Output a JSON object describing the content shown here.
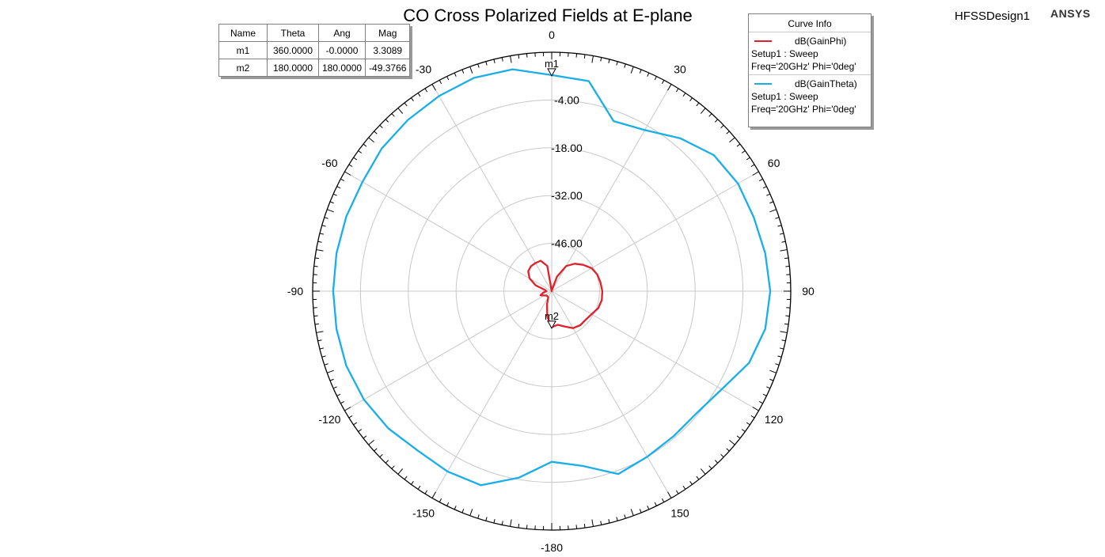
{
  "header": {
    "title": "CO Cross Polarized Fields at E-plane",
    "design": "HFSSDesign1",
    "brand": "ANSYS"
  },
  "marker_table": {
    "columns": [
      "Name",
      "Theta",
      "Ang",
      "Mag"
    ],
    "rows": [
      [
        "m1",
        "360.0000",
        "-0.0000",
        "3.3089"
      ],
      [
        "m2",
        "180.0000",
        "180.0000",
        "-49.3766"
      ]
    ]
  },
  "legend": {
    "title": "Curve Info",
    "entries": [
      {
        "name": "dB(GainPhi)",
        "setup": "Setup1 : Sweep",
        "freq": "Freq='20GHz' Phi='0deg'",
        "color": "#e0202a"
      },
      {
        "name": "dB(GainTheta)",
        "setup": "Setup1 : Sweep",
        "freq": "Freq='20GHz' Phi='0deg'",
        "color": "#1aaee8"
      }
    ]
  },
  "chart_data": {
    "type": "polar",
    "radial_range": [
      -60,
      10
    ],
    "radial_ticks": [
      -46.0,
      -32.0,
      -18.0,
      -4.0
    ],
    "radial_tick_labels": [
      "-46.00",
      "-32.00",
      "-18.00",
      "-4.00"
    ],
    "angle_ticks": [
      0,
      30,
      60,
      90,
      120,
      150,
      -180,
      -150,
      -120,
      -90,
      -60,
      -30
    ],
    "angle_tick_labels": [
      "0",
      "30",
      "60",
      "90",
      "120",
      "150",
      "-180",
      "-150",
      "-120",
      "-90",
      "-60",
      "-30"
    ],
    "grid": true,
    "series": [
      {
        "name": "dB(GainPhi)",
        "color": "#e0202a",
        "points": [
          [
            0,
            -60
          ],
          [
            10,
            -59.5
          ],
          [
            20,
            -55.5
          ],
          [
            30,
            -51.5
          ],
          [
            40,
            -49.5
          ],
          [
            50,
            -48
          ],
          [
            60,
            -46.5
          ],
          [
            70,
            -45.8
          ],
          [
            80,
            -45.5
          ],
          [
            90,
            -45.2
          ],
          [
            100,
            -45.1
          ],
          [
            110,
            -45.5
          ],
          [
            120,
            -46.5
          ],
          [
            130,
            -47
          ],
          [
            140,
            -47
          ],
          [
            150,
            -47.5
          ],
          [
            160,
            -49
          ],
          [
            170,
            -50
          ],
          [
            180,
            -49.4
          ],
          [
            -170,
            -52.5
          ],
          [
            -160,
            -56
          ],
          [
            -150,
            -58
          ],
          [
            -130,
            -58
          ],
          [
            -110,
            -56.5
          ],
          [
            -100,
            -57.5
          ],
          [
            -90,
            -58.5
          ],
          [
            -80,
            -58
          ],
          [
            -70,
            -55
          ],
          [
            -60,
            -52.5
          ],
          [
            -50,
            -51
          ],
          [
            -40,
            -50.5
          ],
          [
            -30,
            -50.5
          ],
          [
            -20,
            -50.5
          ],
          [
            -10,
            -52.5
          ]
        ]
      },
      {
        "name": "dB(GainTheta)",
        "color": "#1aaee8",
        "points": [
          [
            0,
            3.3
          ],
          [
            10,
            2.5
          ],
          [
            20,
            -7
          ],
          [
            30,
            -5.5
          ],
          [
            40,
            -1.5
          ],
          [
            50,
            2
          ],
          [
            60,
            3
          ],
          [
            70,
            3
          ],
          [
            80,
            3.5
          ],
          [
            90,
            4
          ],
          [
            100,
            3.5
          ],
          [
            110,
            1.5
          ],
          [
            120,
            -2.5
          ],
          [
            130,
            -4.5
          ],
          [
            140,
            -4.5
          ],
          [
            150,
            -4
          ],
          [
            160,
            -3
          ],
          [
            170,
            -8
          ],
          [
            180,
            -10
          ],
          [
            -170,
            -4.5
          ],
          [
            -160,
            0.5
          ],
          [
            -150,
            1
          ],
          [
            -140,
            1
          ],
          [
            -130,
            2.5
          ],
          [
            -120,
            3.5
          ],
          [
            -110,
            4
          ],
          [
            -100,
            4
          ],
          [
            -90,
            4
          ],
          [
            -80,
            4
          ],
          [
            -70,
            4
          ],
          [
            -60,
            4
          ],
          [
            -50,
            5
          ],
          [
            -40,
            5.5
          ],
          [
            -30,
            6
          ],
          [
            -20,
            6.5
          ],
          [
            -10,
            6
          ]
        ]
      }
    ],
    "markers": [
      {
        "name": "m1",
        "angle": 0,
        "value": 3.3089
      },
      {
        "name": "m2",
        "angle": 180,
        "value": -49.3766
      }
    ]
  }
}
